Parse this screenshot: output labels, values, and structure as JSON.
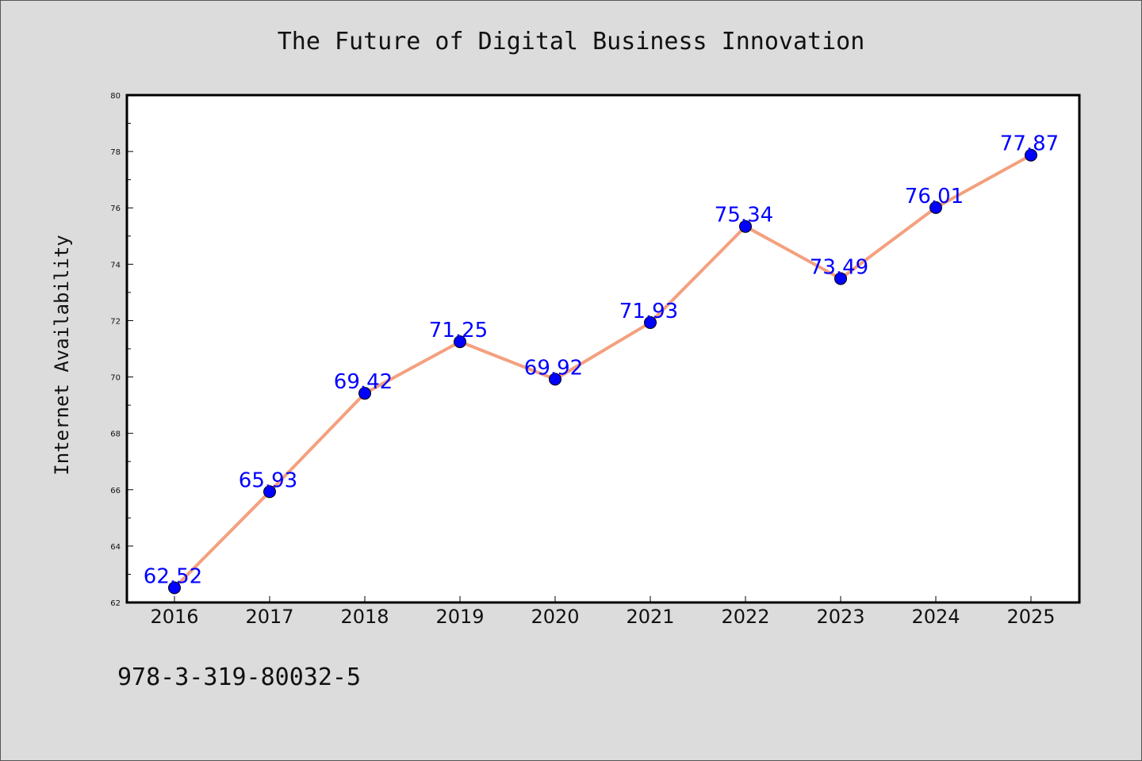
{
  "chart_data": {
    "type": "line",
    "title": "The Future of Digital Business Innovation",
    "xlabel": "",
    "ylabel": "Internet Availability",
    "categories": [
      "2016",
      "2017",
      "2018",
      "2019",
      "2020",
      "2021",
      "2022",
      "2023",
      "2024",
      "2025"
    ],
    "values": [
      62.52,
      65.93,
      69.42,
      71.25,
      69.92,
      71.93,
      75.34,
      73.49,
      76.01,
      77.87
    ],
    "data_labels": [
      "62.52",
      "65.93",
      "69.42",
      "71.25",
      "69.92",
      "71.93",
      "75.34",
      "73.49",
      "76.01",
      "77.87"
    ],
    "ylim": [
      62,
      80
    ],
    "yticks": [
      "62",
      "64",
      "66",
      "68",
      "70",
      "72",
      "74",
      "76",
      "78",
      "80"
    ],
    "grid": false,
    "line_color": "#f4a07e",
    "marker_color": "#0000ff",
    "label_color": "#0000ff"
  },
  "footer": {
    "isbn": "978-3-319-80032-5"
  }
}
